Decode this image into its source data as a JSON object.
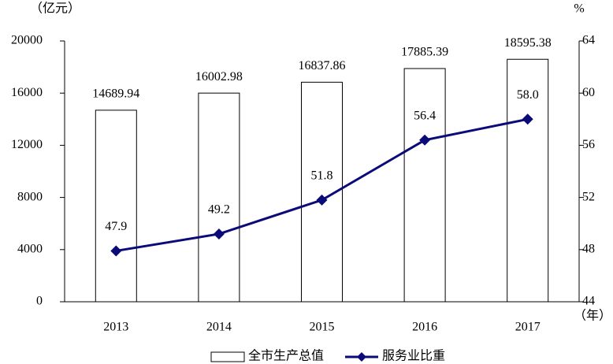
{
  "chart_data": {
    "type": "combo",
    "y_label": "（亿元）",
    "y2_label": "%",
    "x_label": "（年）",
    "categories": [
      "2013",
      "2014",
      "2015",
      "2016",
      "2017"
    ],
    "series": [
      {
        "name": "全市生产总值",
        "type": "bar",
        "color": "#ffffff",
        "values": [
          14689.94,
          16002.98,
          16837.86,
          17885.39,
          18595.38
        ]
      },
      {
        "name": "服务业比重",
        "type": "line",
        "axis": "y2",
        "color": "#0a0a78",
        "values": [
          47.9,
          49.2,
          51.8,
          56.4,
          58.0
        ],
        "value_labels": [
          "47.9",
          "49.2",
          "51.8",
          "56.4",
          "58.0"
        ]
      }
    ],
    "ylim": [
      0,
      20000
    ],
    "yticks": [
      0,
      4000,
      8000,
      12000,
      16000,
      20000
    ],
    "y2lim": [
      44,
      64
    ],
    "y2ticks": [
      44,
      48,
      52,
      56,
      60,
      64
    ],
    "grid": false,
    "legend": "bottom"
  }
}
